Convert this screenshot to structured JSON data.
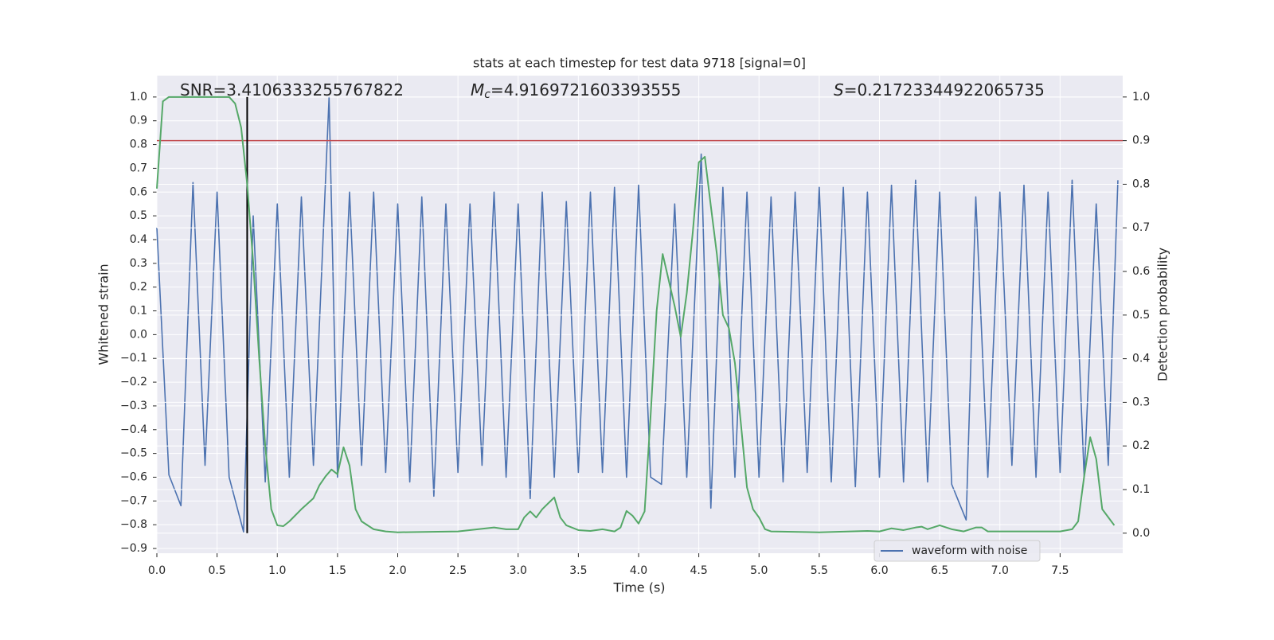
{
  "chart_data": {
    "type": "line",
    "title": "stats at each timestep for test data 9718 [signal=0]",
    "x_label": "Time (s)",
    "y_label": "Whitened strain",
    "y2_label": "Detection probability",
    "xlim": [
      0,
      8.02
    ],
    "ylim": [
      -0.92,
      1.09
    ],
    "y2lim": [
      -0.046,
      1.049
    ],
    "grid": true,
    "xticks": [
      {
        "value": 0,
        "label": "0.0"
      },
      0.5,
      {
        "value": 1,
        "label": "1.0"
      },
      1.5,
      {
        "value": 2,
        "label": "2.0"
      },
      2.5,
      {
        "value": 3,
        "label": "3.0"
      },
      3.5,
      {
        "value": 4,
        "label": "4.0"
      },
      4.5,
      {
        "value": 5,
        "label": "5.0"
      },
      5.5,
      {
        "value": 6,
        "label": "6.0"
      },
      6.5,
      {
        "value": 7,
        "label": "7.0"
      },
      7.5
    ],
    "yticks": [
      {
        "value": -0.9,
        "label": "−0.9"
      },
      {
        "value": -0.8,
        "label": "−0.8"
      },
      {
        "value": -0.7,
        "label": "−0.7"
      },
      {
        "value": -0.6,
        "label": "−0.6"
      },
      {
        "value": -0.5,
        "label": "−0.5"
      },
      {
        "value": -0.4,
        "label": "−0.4"
      },
      {
        "value": -0.3,
        "label": "−0.3"
      },
      {
        "value": -0.2,
        "label": "−0.2"
      },
      {
        "value": -0.1,
        "label": "−0.1"
      },
      {
        "value": 0,
        "label": "0.0"
      },
      0.1,
      0.2,
      0.3,
      0.4,
      0.5,
      0.6,
      0.7,
      0.8,
      0.9,
      {
        "value": 1,
        "label": "1.0"
      }
    ],
    "y2ticks": [
      {
        "value": 0,
        "label": "0.0"
      },
      0.1,
      0.2,
      0.3,
      0.4,
      0.5,
      0.6,
      0.7,
      0.8,
      0.9,
      {
        "value": 1,
        "label": "1.0"
      }
    ],
    "series": [
      {
        "name": "waveform with noise",
        "color": "#4c72b0",
        "x": [
          0.0,
          0.1,
          0.2,
          0.3,
          0.4,
          0.5,
          0.6,
          0.72,
          0.8,
          0.9,
          1.0,
          1.1,
          1.2,
          1.3,
          1.43,
          1.5,
          1.6,
          1.7,
          1.8,
          1.9,
          2.0,
          2.1,
          2.2,
          2.3,
          2.4,
          2.5,
          2.6,
          2.7,
          2.8,
          2.9,
          3.0,
          3.1,
          3.2,
          3.3,
          3.4,
          3.5,
          3.6,
          3.7,
          3.8,
          3.9,
          4.0,
          4.1,
          4.19,
          4.3,
          4.4,
          4.52,
          4.6,
          4.7,
          4.8,
          4.9,
          5.0,
          5.1,
          5.2,
          5.3,
          5.4,
          5.5,
          5.6,
          5.7,
          5.8,
          5.9,
          6.0,
          6.1,
          6.2,
          6.3,
          6.4,
          6.5,
          6.6,
          6.72,
          6.8,
          6.9,
          7.0,
          7.1,
          7.2,
          7.3,
          7.4,
          7.5,
          7.6,
          7.7,
          7.8,
          7.9,
          7.98
        ],
        "values": [
          0.45,
          -0.59,
          -0.72,
          0.64,
          -0.55,
          0.6,
          -0.6,
          -0.83,
          0.5,
          -0.62,
          0.55,
          -0.6,
          0.58,
          -0.55,
          1.0,
          -0.6,
          0.6,
          -0.55,
          0.6,
          -0.58,
          0.55,
          -0.62,
          0.58,
          -0.68,
          0.55,
          -0.58,
          0.55,
          -0.55,
          0.6,
          -0.6,
          0.55,
          -0.69,
          0.6,
          -0.6,
          0.56,
          -0.58,
          0.6,
          -0.58,
          0.62,
          -0.6,
          0.63,
          -0.6,
          -0.63,
          0.55,
          -0.6,
          0.76,
          -0.73,
          0.62,
          -0.6,
          0.6,
          -0.6,
          0.58,
          -0.62,
          0.6,
          -0.58,
          0.62,
          -0.62,
          0.62,
          -0.64,
          0.6,
          -0.6,
          0.63,
          -0.62,
          0.65,
          -0.62,
          0.6,
          -0.63,
          -0.78,
          0.58,
          -0.6,
          0.6,
          -0.55,
          0.63,
          -0.6,
          0.6,
          -0.58,
          0.65,
          -0.6,
          0.55,
          -0.55,
          0.65
        ]
      },
      {
        "color": "#55a868",
        "axis": "y2",
        "x": [
          0.0,
          0.05,
          0.1,
          0.6,
          0.65,
          0.7,
          0.75,
          0.8,
          0.85,
          0.9,
          0.95,
          1.0,
          1.05,
          1.1,
          1.2,
          1.3,
          1.35,
          1.4,
          1.45,
          1.5,
          1.55,
          1.6,
          1.65,
          1.7,
          1.8,
          1.9,
          2.0,
          2.5,
          2.8,
          2.9,
          3.0,
          3.05,
          3.1,
          3.15,
          3.2,
          3.3,
          3.35,
          3.4,
          3.5,
          3.6,
          3.7,
          3.8,
          3.85,
          3.9,
          3.95,
          4.0,
          4.05,
          4.1,
          4.15,
          4.2,
          4.3,
          4.35,
          4.4,
          4.45,
          4.5,
          4.55,
          4.6,
          4.65,
          4.7,
          4.75,
          4.8,
          4.85,
          4.9,
          4.95,
          5.0,
          5.05,
          5.1,
          5.5,
          5.9,
          6.0,
          6.1,
          6.2,
          6.3,
          6.35,
          6.4,
          6.5,
          6.6,
          6.7,
          6.8,
          6.85,
          6.9,
          7.0,
          7.5,
          7.6,
          7.65,
          7.7,
          7.75,
          7.8,
          7.85,
          7.95
        ],
        "values": [
          0.79,
          0.99,
          1.0,
          1.0,
          0.985,
          0.93,
          0.8,
          0.62,
          0.4,
          0.2,
          0.055,
          0.018,
          0.016,
          0.027,
          0.055,
          0.08,
          0.11,
          0.13,
          0.146,
          0.135,
          0.197,
          0.155,
          0.055,
          0.027,
          0.009,
          0.004,
          0.002,
          0.004,
          0.013,
          0.009,
          0.009,
          0.036,
          0.05,
          0.036,
          0.055,
          0.082,
          0.036,
          0.018,
          0.007,
          0.005,
          0.009,
          0.004,
          0.013,
          0.051,
          0.04,
          0.022,
          0.05,
          0.27,
          0.51,
          0.64,
          0.52,
          0.45,
          0.55,
          0.69,
          0.85,
          0.863,
          0.75,
          0.64,
          0.5,
          0.47,
          0.39,
          0.25,
          0.105,
          0.055,
          0.036,
          0.009,
          0.004,
          0.002,
          0.005,
          0.004,
          0.011,
          0.007,
          0.013,
          0.015,
          0.009,
          0.018,
          0.009,
          0.004,
          0.013,
          0.013,
          0.004,
          0.004,
          0.004,
          0.009,
          0.027,
          0.13,
          0.22,
          0.17,
          0.055,
          0.018
        ]
      }
    ],
    "hlines": [
      {
        "value": 0.9,
        "axis": "y2",
        "color": "#c44e52"
      }
    ],
    "vlines": [
      {
        "x": 0.75,
        "from": 0,
        "to": 1,
        "axis": "y2",
        "color": "#000000"
      }
    ],
    "annotations": [
      {
        "parts": [
          "SNR=3.4106333255767822"
        ]
      },
      {
        "parts": [
          "M",
          "c",
          "=4.9169721603393555"
        ]
      },
      {
        "parts": [
          "S",
          "=0.21723344922065735"
        ]
      }
    ]
  }
}
